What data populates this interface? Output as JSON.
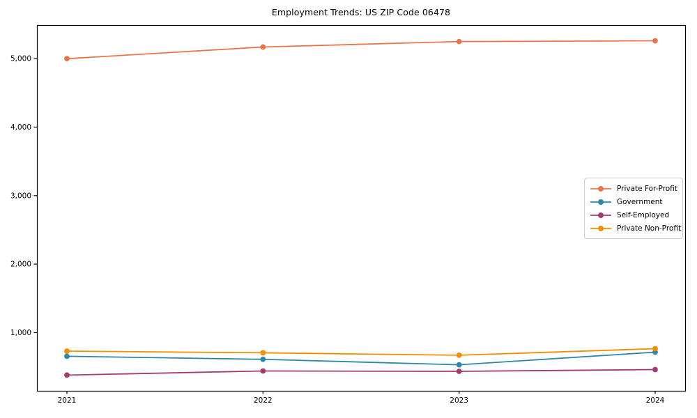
{
  "figure": {
    "background_color": "#ffffff",
    "axis_color": "#000000",
    "legend_border_color": "#cccccc"
  },
  "chart_data": {
    "type": "line",
    "title": "Employment Trends: US ZIP Code 06478",
    "categories": [
      "2021",
      "2022",
      "2023",
      "2024"
    ],
    "series": [
      {
        "name": "Private For-Profit",
        "color": "#E8764B",
        "values": [
          5000,
          5170,
          5250,
          5260
        ]
      },
      {
        "name": "Government",
        "color": "#2E86AB",
        "values": [
          655,
          610,
          530,
          715
        ]
      },
      {
        "name": "Self-Employed",
        "color": "#A23B72",
        "values": [
          380,
          440,
          435,
          460
        ]
      },
      {
        "name": "Private Non-Profit",
        "color": "#F18F01",
        "values": [
          730,
          705,
          670,
          765
        ]
      }
    ],
    "xlabel": "",
    "ylabel": "",
    "ylim": [
      150,
      5490
    ],
    "y_ticks": [
      1000,
      2000,
      3000,
      4000,
      5000
    ],
    "y_tick_labels": [
      "1,000",
      "2,000",
      "3,000",
      "4,000",
      "5,000"
    ],
    "grid": false,
    "legend_position": "center right",
    "marker": "circle"
  }
}
